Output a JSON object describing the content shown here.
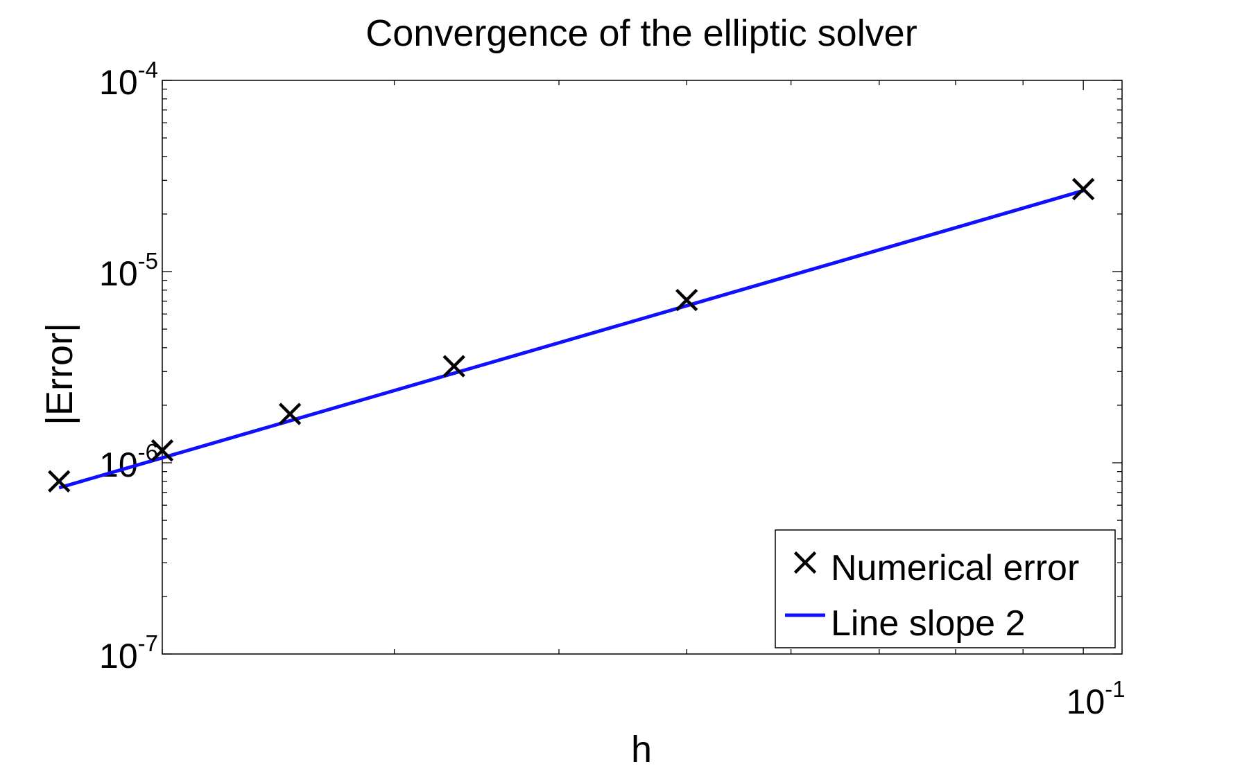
{
  "chart_data": {
    "type": "line",
    "title": "Convergence of the elliptic solver",
    "xlabel": "h",
    "ylabel": "|Error|",
    "xscale": "log",
    "yscale": "log",
    "xlim": [
      0.02,
      0.107
    ],
    "ylim": [
      1e-07,
      0.0001
    ],
    "grid": false,
    "legend_position": "bottom-right",
    "x_ticks": [
      {
        "value": 0.1,
        "base": "10",
        "exponent": "-1"
      }
    ],
    "y_ticks": [
      {
        "value": 1e-07,
        "base": "10",
        "exponent": "-7"
      },
      {
        "value": 1e-06,
        "base": "10",
        "exponent": "-6"
      },
      {
        "value": 1e-05,
        "base": "10",
        "exponent": "-5"
      },
      {
        "value": 0.0001,
        "base": "10",
        "exponent": "-4"
      }
    ],
    "series": [
      {
        "name": "Numerical error",
        "style": "markers",
        "marker": "x",
        "color": "#000000",
        "x": [
          0.0167,
          0.02,
          0.025,
          0.0333,
          0.05,
          0.1
        ],
        "y": [
          8e-07,
          1.16e-06,
          1.8e-06,
          3.2e-06,
          7.1e-06,
          2.7e-05
        ]
      },
      {
        "name": "Line slope 2",
        "style": "line",
        "color": "#1010ff",
        "x": [
          0.0167,
          0.1
        ],
        "y": [
          7.4e-07,
          2.65e-05
        ]
      }
    ]
  }
}
